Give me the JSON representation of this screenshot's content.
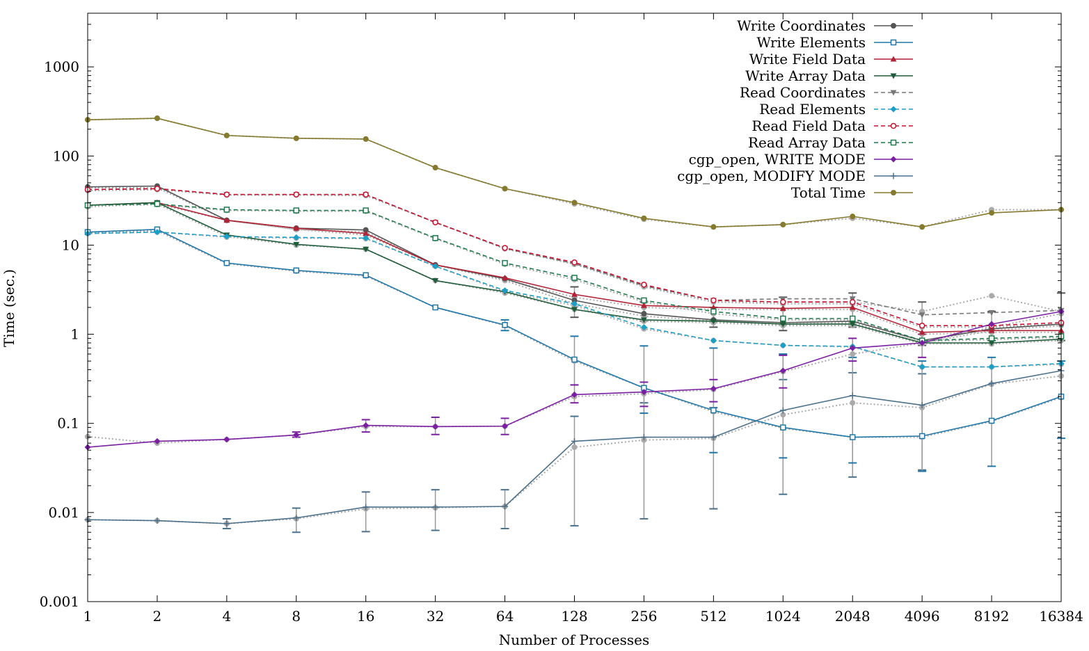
{
  "chart_data": {
    "type": "line",
    "xlabel": "Number of Processes",
    "ylabel": "Time (sec.)",
    "yscale": "log",
    "ylim": [
      0.001,
      4000
    ],
    "x_tick_labels": [
      "1",
      "2",
      "4",
      "8",
      "16",
      "32",
      "64",
      "128",
      "256",
      "512",
      "1024",
      "2048",
      "4096",
      "8192",
      "16384"
    ],
    "y_tick_labels": [
      "0.001",
      "0.01",
      "0.1",
      "1",
      "10",
      "100",
      "1000"
    ],
    "y_tick_values": [
      0.001,
      0.01,
      0.1,
      1,
      10,
      100,
      1000
    ],
    "legend_position": "top-right",
    "x": [
      1,
      2,
      4,
      8,
      16,
      32,
      64,
      128,
      256,
      512,
      1024,
      2048,
      4096,
      8192,
      16384
    ],
    "series": [
      {
        "name": "Write Coordinates",
        "color": "#555555",
        "dash": "solid",
        "marker": "circle",
        "values": [
          45,
          46,
          19,
          15.5,
          14.8,
          6.0,
          4.2,
          2.4,
          1.7,
          1.45,
          1.35,
          1.4,
          0.85,
          1.15,
          1.3
        ],
        "values_gray": [
          44,
          44,
          19,
          15,
          14,
          6.0,
          4.0,
          2.2,
          1.6,
          1.4,
          1.3,
          1.35,
          0.8,
          1.1,
          1.25
        ]
      },
      {
        "name": "Write Elements",
        "color": "#1f77a8",
        "dash": "solid",
        "marker": "square",
        "values": [
          14,
          15,
          6.3,
          5.2,
          4.6,
          2.0,
          1.27,
          0.52,
          0.25,
          0.14,
          0.09,
          0.07,
          0.072,
          0.107,
          0.2
        ],
        "values_gray": [
          13.8,
          14.5,
          6.2,
          5.1,
          4.5,
          2.0,
          1.25,
          0.5,
          0.25,
          0.135,
          0.088,
          0.07,
          0.07,
          0.105,
          0.195
        ]
      },
      {
        "name": "Write Field Data",
        "color": "#b22234",
        "dash": "solid",
        "marker": "triangle",
        "values": [
          28,
          30,
          19,
          15.5,
          13.5,
          6.0,
          4.3,
          2.8,
          2.1,
          2.0,
          1.95,
          2.0,
          1.05,
          1.1,
          1.1
        ],
        "values_gray": [
          27,
          29,
          19,
          15,
          13,
          6.0,
          4.1,
          2.6,
          2.0,
          1.9,
          1.9,
          1.9,
          1.0,
          1.05,
          1.05
        ]
      },
      {
        "name": "Write Array Data",
        "color": "#1e5c3a",
        "dash": "solid",
        "marker": "triangle-down",
        "values": [
          28,
          30,
          13,
          10.2,
          9.0,
          4.0,
          3.0,
          1.9,
          1.45,
          1.4,
          1.3,
          1.3,
          0.8,
          0.8,
          0.88
        ],
        "values_gray": [
          27.5,
          29,
          12.5,
          10,
          9.0,
          4.0,
          2.9,
          1.9,
          1.4,
          1.35,
          1.25,
          1.25,
          0.78,
          0.78,
          0.85
        ]
      },
      {
        "name": "Read Coordinates",
        "color": "#777777",
        "dash": "dashed",
        "marker": "triangle-down",
        "values": [
          42,
          43,
          37,
          37,
          37,
          18,
          9.2,
          6.2,
          3.5,
          2.4,
          2.5,
          2.5,
          1.65,
          1.75,
          1.85
        ],
        "values_gray": [
          41,
          42,
          36.5,
          36.5,
          36,
          18,
          9.1,
          6.1,
          3.4,
          2.3,
          2.3,
          2.3,
          1.8,
          2.7,
          1.8
        ]
      },
      {
        "name": "Read Elements",
        "color": "#1a9fc7",
        "dash": "dashed",
        "marker": "diamond",
        "values": [
          13.5,
          14,
          12.5,
          12.2,
          12.0,
          5.8,
          3.1,
          2.2,
          1.2,
          0.85,
          0.75,
          0.73,
          0.43,
          0.43,
          0.47
        ],
        "values_gray": [
          13.5,
          14,
          12.3,
          12.0,
          11.8,
          5.8,
          3.0,
          2.1,
          1.15,
          0.85,
          0.75,
          0.72,
          0.43,
          0.43,
          0.46
        ]
      },
      {
        "name": "Read Field Data",
        "color": "#c8102e",
        "dash": "dashed",
        "marker": "circle-open",
        "values": [
          42,
          43,
          37,
          37,
          37,
          18,
          9.3,
          6.4,
          3.6,
          2.4,
          2.3,
          2.3,
          1.25,
          1.25,
          1.35
        ],
        "values_gray": [
          41,
          42,
          36.5,
          36.5,
          36,
          18,
          9.1,
          6.2,
          3.5,
          2.3,
          2.2,
          2.2,
          1.2,
          1.2,
          1.3
        ]
      },
      {
        "name": "Read Array Data",
        "color": "#1e7a4c",
        "dash": "dashed",
        "marker": "square-open",
        "values": [
          28,
          29,
          25,
          24.5,
          24.5,
          12,
          6.3,
          4.3,
          2.4,
          1.8,
          1.5,
          1.5,
          0.85,
          0.9,
          0.95
        ],
        "values_gray": [
          27.5,
          28.5,
          24.5,
          24,
          24,
          11.8,
          6.1,
          4.1,
          2.3,
          1.7,
          1.45,
          1.45,
          0.83,
          0.87,
          0.92
        ]
      },
      {
        "name": "cgp_open, WRITE MODE",
        "color": "#7b1fa2",
        "dash": "solid",
        "marker": "diamond",
        "values": [
          0.054,
          0.063,
          0.066,
          0.074,
          0.095,
          0.092,
          0.093,
          0.21,
          0.225,
          0.245,
          0.39,
          0.7,
          0.8,
          1.3,
          1.8
        ],
        "values_gray": [
          0.071,
          0.06,
          0.066,
          0.074,
          0.092,
          0.092,
          0.093,
          0.2,
          0.215,
          0.24,
          0.38,
          0.6,
          0.8,
          1.2,
          1.7
        ]
      },
      {
        "name": "cgp_open, MODIFY MODE",
        "color": "#4a708b",
        "dash": "solid",
        "marker": "plus",
        "values": [
          0.0083,
          0.0081,
          0.0075,
          0.0087,
          0.0115,
          0.0115,
          0.0117,
          0.063,
          0.07,
          0.07,
          0.14,
          0.205,
          0.16,
          0.28,
          0.39
        ],
        "values_gray": [
          0.0083,
          0.0081,
          0.0075,
          0.0085,
          0.011,
          0.0113,
          0.0117,
          0.054,
          0.065,
          0.068,
          0.125,
          0.17,
          0.15,
          0.275,
          0.34
        ]
      },
      {
        "name": "Total Time",
        "color": "#857a2e",
        "dash": "solid",
        "marker": "circle",
        "values": [
          255,
          265,
          170,
          158,
          155,
          74,
          43,
          30,
          20,
          16,
          17,
          21,
          16,
          23,
          25
        ],
        "values_gray": [
          255,
          265,
          170,
          158,
          155,
          74,
          43,
          29,
          19.5,
          16,
          17,
          20,
          16,
          25,
          25
        ]
      }
    ],
    "error_bars": [
      {
        "series": "cgp_open, MODIFY MODE",
        "x": [
          4,
          8,
          16,
          32,
          64,
          128,
          256,
          512,
          1024,
          2048,
          4096
        ],
        "low": [
          0.0066,
          0.006,
          0.0061,
          0.0063,
          0.0066,
          0.0071,
          0.0085,
          0.011,
          0.016,
          0.025,
          0.03
        ],
        "high": [
          0.0085,
          0.0112,
          0.017,
          0.018,
          0.018,
          0.12,
          0.17,
          0.15,
          0.31,
          0.37,
          0.36
        ]
      },
      {
        "series": "Write Elements",
        "x": [
          64,
          128,
          256,
          512,
          1024,
          2048,
          4096,
          8192,
          16384
        ],
        "low": [
          1.1,
          0.27,
          0.13,
          0.047,
          0.041,
          0.036,
          0.029,
          0.033,
          0.068
        ],
        "high": [
          1.45,
          0.95,
          0.74,
          0.7,
          0.6,
          0.55,
          0.5,
          0.55,
          0.5
        ]
      },
      {
        "series": "cgp_open, WRITE MODE",
        "x": [
          8,
          16,
          32,
          64,
          128,
          256,
          512,
          1024,
          2048,
          4096
        ],
        "low": [
          0.07,
          0.08,
          0.075,
          0.075,
          0.17,
          0.155,
          0.175,
          0.25,
          0.5,
          0.55
        ],
        "high": [
          0.08,
          0.11,
          0.117,
          0.114,
          0.27,
          0.29,
          0.31,
          0.58,
          0.9,
          1.0
        ]
      },
      {
        "series": "Write Coordinates",
        "x": [
          128,
          256,
          512,
          1024,
          2048,
          4096,
          8192,
          16384
        ],
        "low": [
          1.55,
          1.4,
          1.2,
          1.1,
          1.2,
          0.75,
          0.85,
          0.85
        ],
        "high": [
          3.4,
          2.3,
          2.0,
          2.6,
          2.9,
          2.3,
          1.8,
          2.9
        ]
      }
    ]
  }
}
